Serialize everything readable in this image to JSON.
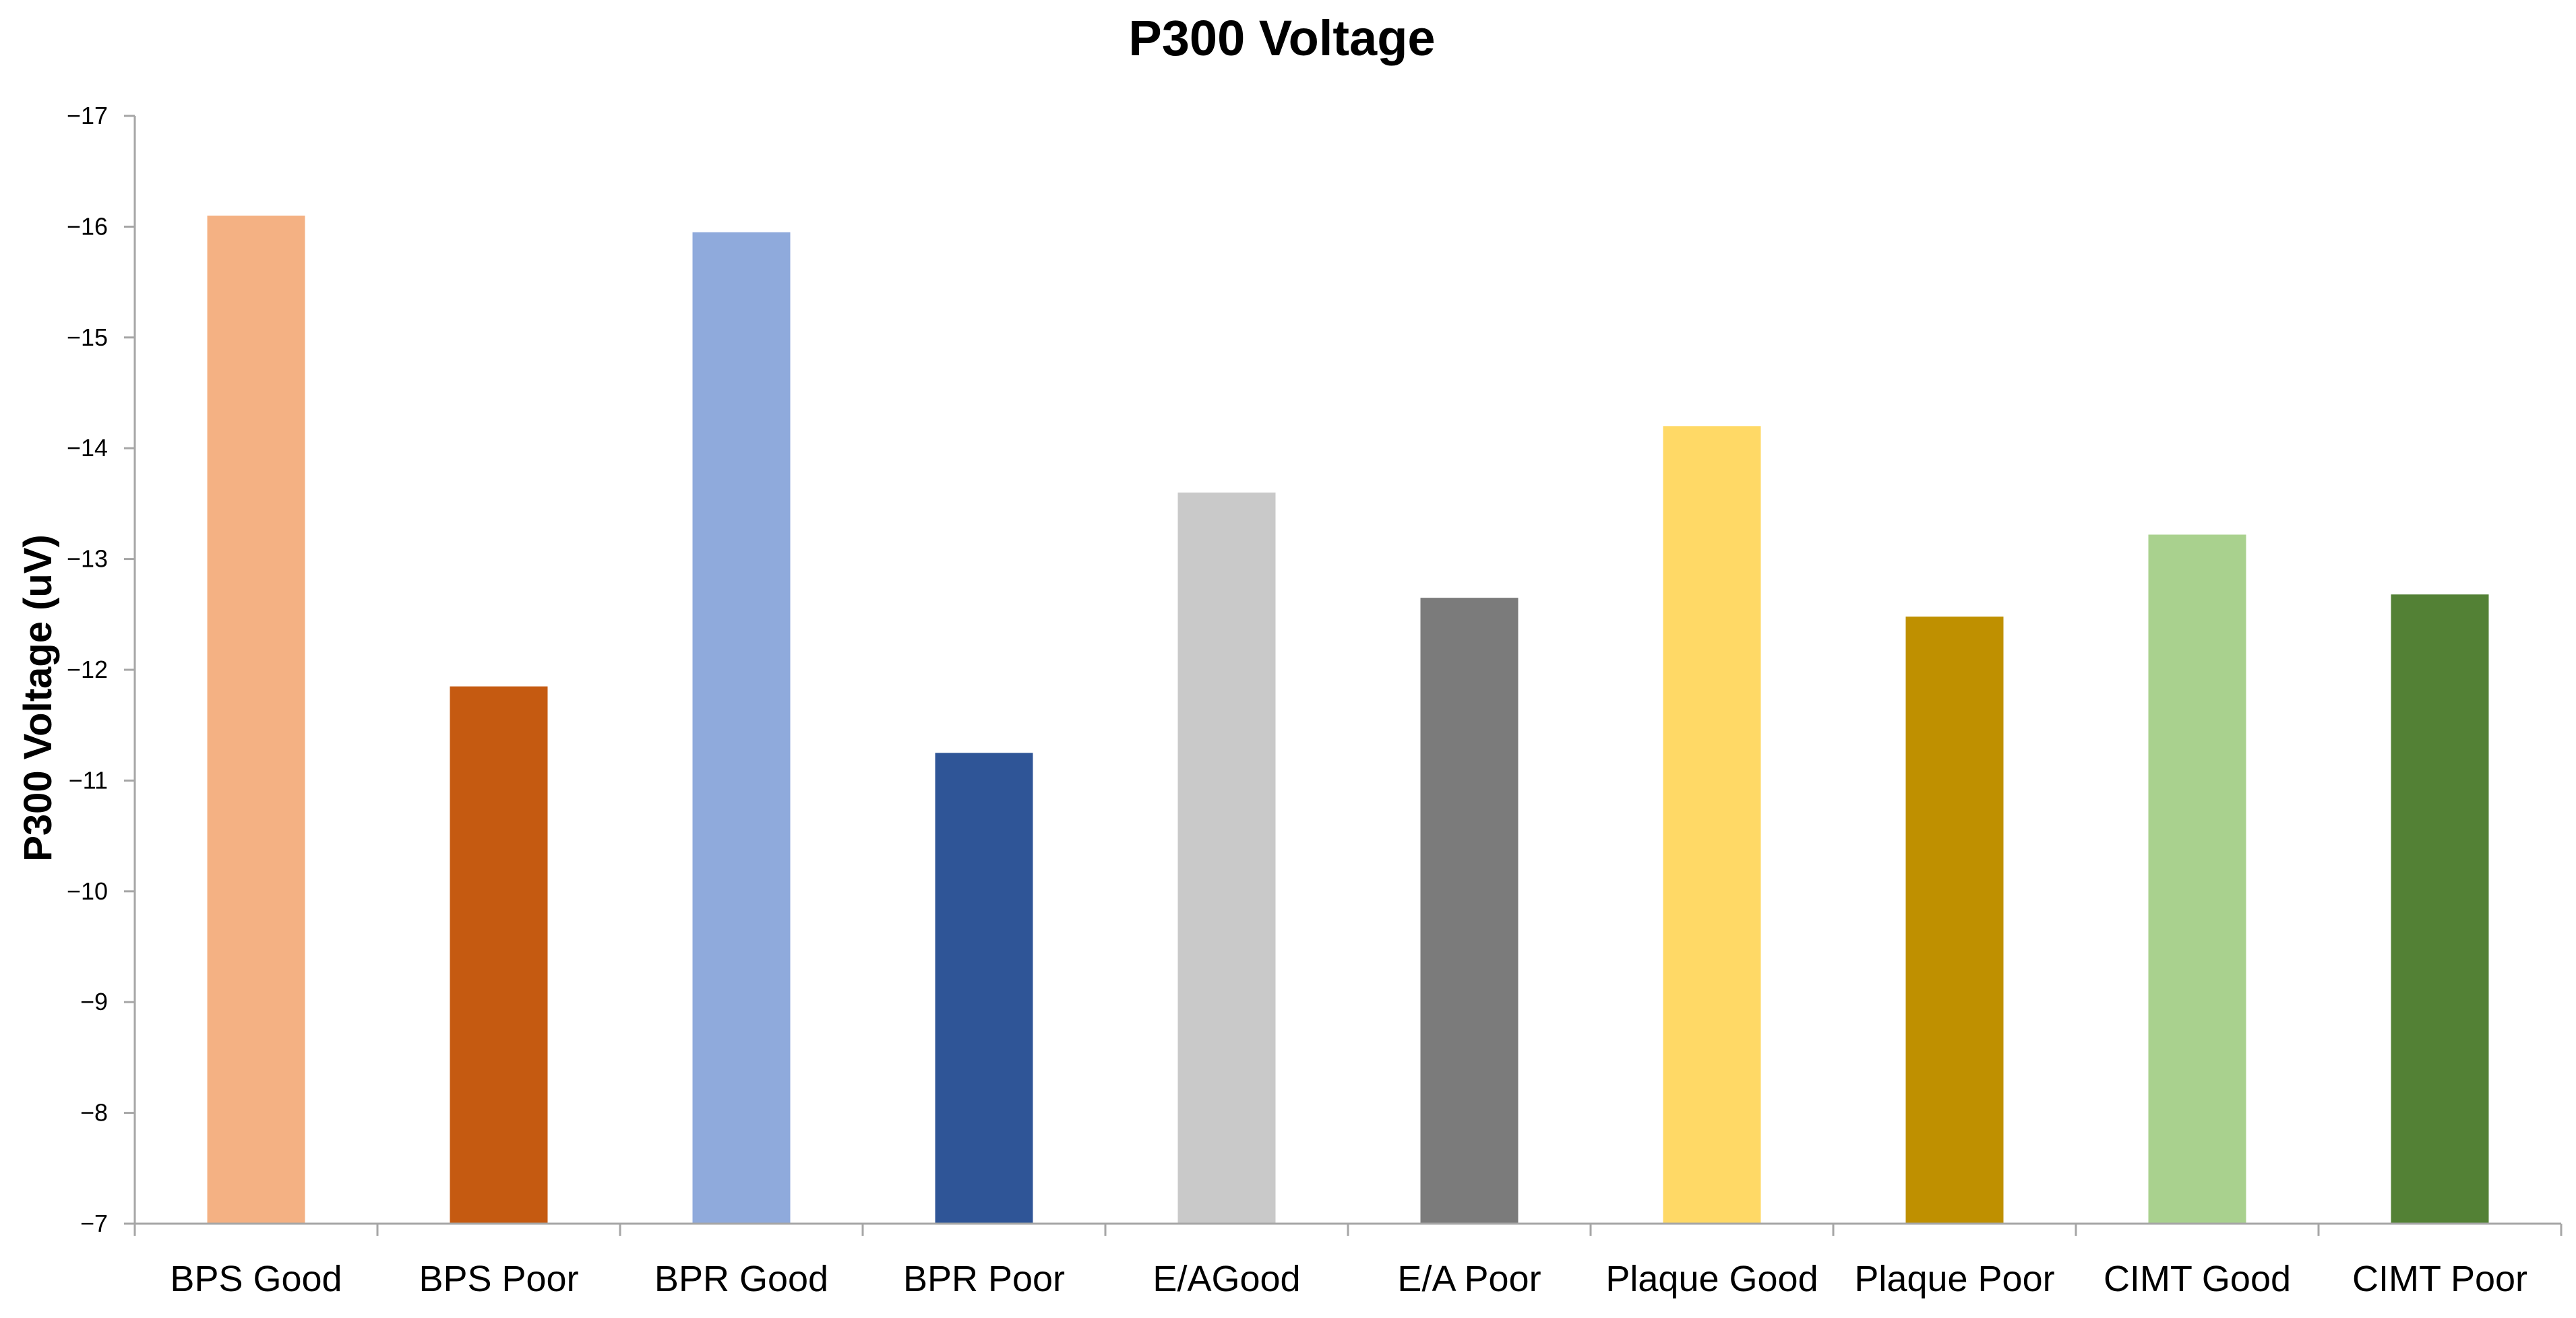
{
  "chart_data": {
    "type": "bar",
    "title": "P300 Voltage",
    "xlabel": "",
    "ylabel": "P300 Voltage (uV)",
    "ylim": [
      -7,
      -17
    ],
    "y_axis_reversed": true,
    "y_ticks": [
      -7,
      -8,
      -9,
      -10,
      -11,
      -12,
      -13,
      -14,
      -15,
      -16,
      -17
    ],
    "grid": false,
    "legend": "none",
    "categories": [
      "BPS Good",
      "BPS Poor",
      "BPR Good",
      "BPR Poor",
      "E/AGood",
      "E/A Poor",
      "Plaque Good",
      "Plaque Poor",
      "CIMT Good",
      "CIMT Poor"
    ],
    "values": [
      -16.1,
      -11.85,
      -15.95,
      -11.25,
      -13.6,
      -12.65,
      -14.2,
      -12.48,
      -13.22,
      -12.68
    ],
    "colors": [
      "#f4b183",
      "#c55a11",
      "#8faadc",
      "#2f5597",
      "#c9c9c9",
      "#7b7b7b",
      "#ffd966",
      "#bf9000",
      "#a9d18e",
      "#538135"
    ]
  }
}
